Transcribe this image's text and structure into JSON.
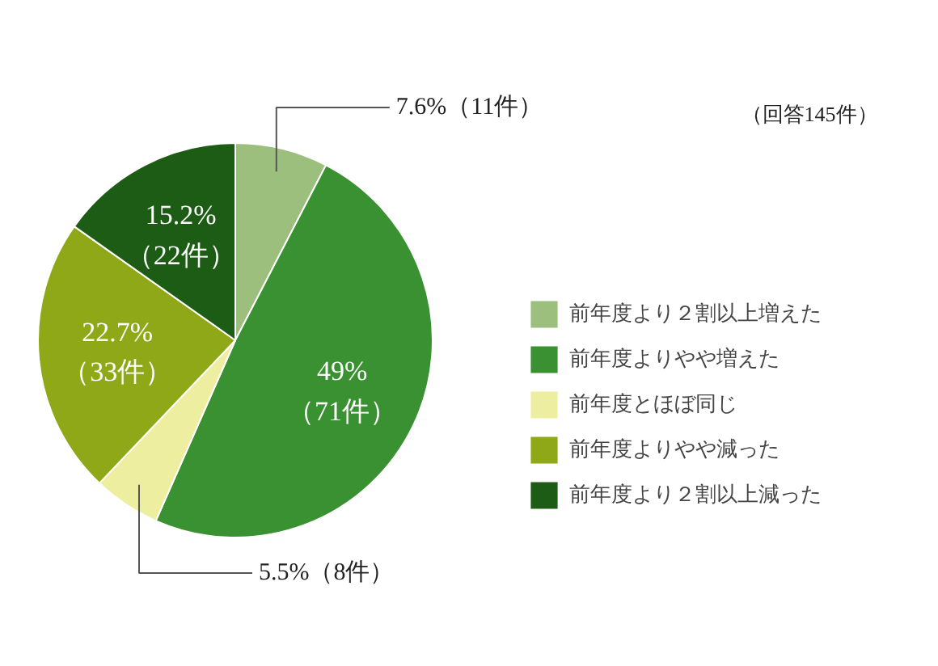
{
  "chart_data": {
    "type": "pie",
    "categories": [
      "前年度より２割以上増えた",
      "前年度よりやや増えた",
      "前年度とほぼ同じ",
      "前年度よりやや減った",
      "前年度より２割以上減った"
    ],
    "values": [
      7.6,
      49,
      5.5,
      22.7,
      15.2
    ],
    "colors": [
      "#9dbf7e",
      "#3a9132",
      "#eeeea0",
      "#8fa818",
      "#1d5c14"
    ],
    "value_labels": [
      "7.6%（11件）",
      "49%\n（71件）",
      "5.5%（8件）",
      "22.7%\n（33件）",
      "15.2%\n（22件）"
    ],
    "annotations": [
      "（回答145件）"
    ],
    "legend": "right"
  }
}
